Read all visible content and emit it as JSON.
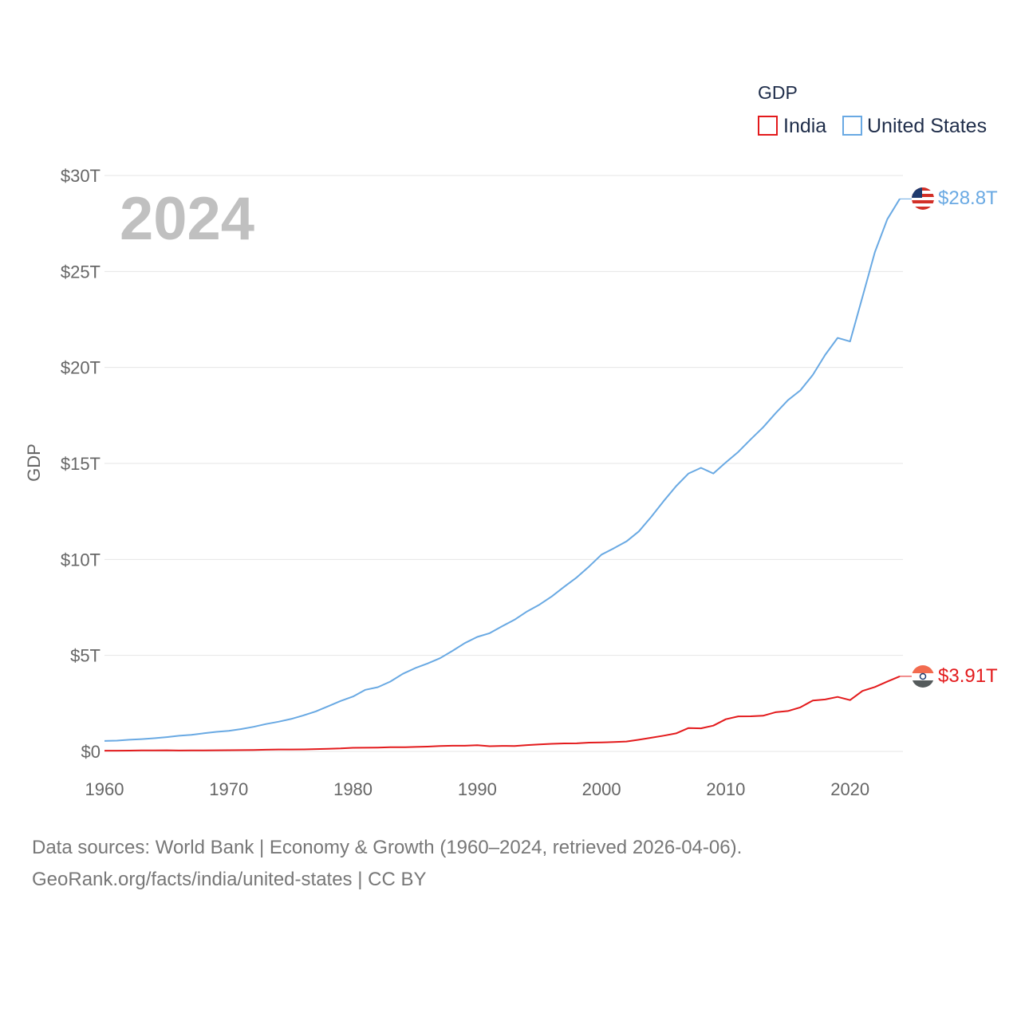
{
  "chart_data": {
    "type": "line",
    "title": "",
    "legend_title": "GDP",
    "ylabel": "GDP",
    "xlabel": "",
    "xlim": [
      1960,
      2024
    ],
    "ylim": [
      0,
      30
    ],
    "unit": "trillion USD",
    "y_ticks": [
      {
        "value": 0,
        "label": "$0"
      },
      {
        "value": 5,
        "label": "$5T"
      },
      {
        "value": 10,
        "label": "$10T"
      },
      {
        "value": 15,
        "label": "$15T"
      },
      {
        "value": 20,
        "label": "$20T"
      },
      {
        "value": 25,
        "label": "$25T"
      },
      {
        "value": 30,
        "label": "$30T"
      }
    ],
    "x_ticks": [
      {
        "value": 1960,
        "label": "1960"
      },
      {
        "value": 1970,
        "label": "1970"
      },
      {
        "value": 1980,
        "label": "1980"
      },
      {
        "value": 1990,
        "label": "1990"
      },
      {
        "value": 2000,
        "label": "2000"
      },
      {
        "value": 2010,
        "label": "2010"
      },
      {
        "value": 2020,
        "label": "2020"
      }
    ],
    "x": [
      1960,
      1961,
      1962,
      1963,
      1964,
      1965,
      1966,
      1967,
      1968,
      1969,
      1970,
      1971,
      1972,
      1973,
      1974,
      1975,
      1976,
      1977,
      1978,
      1979,
      1980,
      1981,
      1982,
      1983,
      1984,
      1985,
      1986,
      1987,
      1988,
      1989,
      1990,
      1991,
      1992,
      1993,
      1994,
      1995,
      1996,
      1997,
      1998,
      1999,
      2000,
      2001,
      2002,
      2003,
      2004,
      2005,
      2006,
      2007,
      2008,
      2009,
      2010,
      2011,
      2012,
      2013,
      2014,
      2015,
      2016,
      2017,
      2018,
      2019,
      2020,
      2021,
      2022,
      2023,
      2024
    ],
    "series": [
      {
        "name": "India",
        "color": "#e31a1c",
        "end_label": "$3.91T",
        "values": [
          0.037,
          0.039,
          0.042,
          0.048,
          0.056,
          0.059,
          0.046,
          0.05,
          0.053,
          0.058,
          0.063,
          0.067,
          0.071,
          0.086,
          0.1,
          0.098,
          0.103,
          0.122,
          0.138,
          0.152,
          0.186,
          0.193,
          0.201,
          0.219,
          0.215,
          0.233,
          0.25,
          0.279,
          0.297,
          0.296,
          0.321,
          0.27,
          0.288,
          0.279,
          0.327,
          0.36,
          0.393,
          0.416,
          0.421,
          0.458,
          0.468,
          0.485,
          0.515,
          0.608,
          0.709,
          0.82,
          0.94,
          1.217,
          1.199,
          1.342,
          1.676,
          1.823,
          1.828,
          1.857,
          2.039,
          2.104,
          2.295,
          2.651,
          2.703,
          2.836,
          2.672,
          3.15,
          3.354,
          3.64,
          3.91
        ]
      },
      {
        "name": "United States",
        "color": "#69a9e3",
        "end_label": "$28.8T",
        "values": [
          0.543,
          0.563,
          0.605,
          0.638,
          0.686,
          0.744,
          0.815,
          0.862,
          0.943,
          1.02,
          1.073,
          1.165,
          1.28,
          1.425,
          1.545,
          1.685,
          1.873,
          2.081,
          2.351,
          2.627,
          2.857,
          3.207,
          3.344,
          3.634,
          4.037,
          4.339,
          4.58,
          4.855,
          5.236,
          5.642,
          5.963,
          6.158,
          6.52,
          6.859,
          7.287,
          7.64,
          8.073,
          8.578,
          9.063,
          9.631,
          10.251,
          10.582,
          10.936,
          11.458,
          12.214,
          13.037,
          13.815,
          14.475,
          14.77,
          14.478,
          15.049,
          15.6,
          16.254,
          16.88,
          17.608,
          18.295,
          18.805,
          19.612,
          20.657,
          21.54,
          21.354,
          23.681,
          26.007,
          27.721,
          28.781
        ]
      }
    ]
  },
  "year_label": "2024",
  "source_line1": "Data sources: World Bank | Economy & Growth (1960–2024, retrieved 2026-04-06).",
  "source_line2": "GeoRank.org/facts/india/united-states | CC BY",
  "flags": {
    "united_states": "us-flag-icon",
    "india": "india-flag-icon"
  }
}
